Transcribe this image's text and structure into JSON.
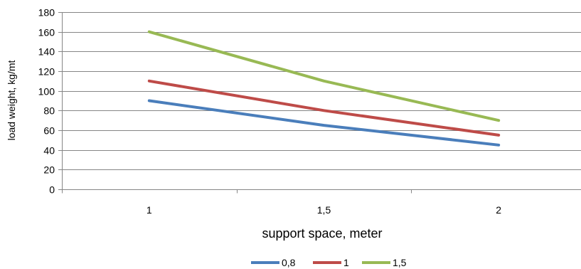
{
  "chart_data": {
    "type": "line",
    "title": "",
    "xlabel": "support space, meter",
    "ylabel": "load weight, kg/mt",
    "categories": [
      "1",
      "1,5",
      "2"
    ],
    "ylim": [
      0,
      180
    ],
    "yticks": [
      0,
      20,
      40,
      60,
      80,
      100,
      120,
      140,
      160,
      180
    ],
    "grid": "horizontal",
    "legend_position": "bottom",
    "series": [
      {
        "name": "0,8",
        "color": "#4a7ebb",
        "values": [
          90,
          65,
          45
        ]
      },
      {
        "name": "1",
        "color": "#be4b48",
        "values": [
          110,
          80,
          55
        ]
      },
      {
        "name": "1,5",
        "color": "#98b954",
        "values": [
          160,
          110,
          70
        ]
      }
    ]
  }
}
